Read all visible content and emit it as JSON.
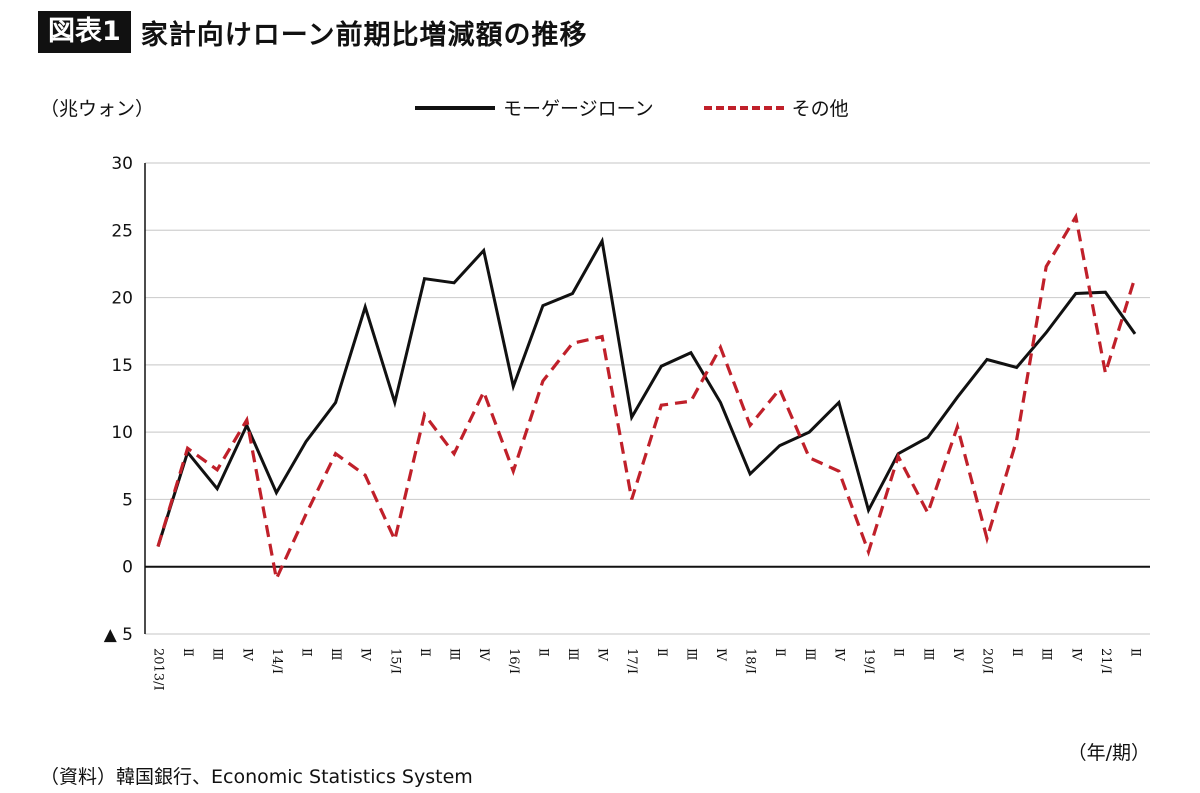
{
  "title": {
    "badge": "図表1",
    "text": "家計向けローン前期比増減額の推移"
  },
  "unit_label": "（兆ウォン）",
  "x_unit_label": "（年/期）",
  "source": "（資料）韓国銀行、Economic Statistics System",
  "colors": {
    "mortgage": "#111111",
    "other": "#c0202a",
    "grid": "#d0d0d0"
  },
  "chart_data": {
    "type": "line",
    "title": "家計向けローン前期比増減額の推移",
    "ylabel": "（兆ウォン）",
    "xlabel": "（年/期）",
    "ylim": [
      -5,
      30
    ],
    "yticks": [
      30,
      25,
      20,
      15,
      10,
      5,
      0,
      -5
    ],
    "ytick_labels": [
      "30",
      "25",
      "20",
      "15",
      "10",
      "5",
      "0",
      "▲ 5"
    ],
    "grid": true,
    "legend_position": "top-center",
    "categories": [
      "2013/Ⅰ",
      "Ⅱ",
      "Ⅲ",
      "Ⅳ",
      "14/Ⅰ",
      "Ⅱ",
      "Ⅲ",
      "Ⅳ",
      "15/Ⅰ",
      "Ⅱ",
      "Ⅲ",
      "Ⅳ",
      "16/Ⅰ",
      "Ⅱ",
      "Ⅲ",
      "Ⅳ",
      "17/Ⅰ",
      "Ⅱ",
      "Ⅲ",
      "Ⅳ",
      "18/Ⅰ",
      "Ⅱ",
      "Ⅲ",
      "Ⅳ",
      "19/Ⅰ",
      "Ⅱ",
      "Ⅲ",
      "Ⅳ",
      "20/Ⅰ",
      "Ⅱ",
      "Ⅲ",
      "Ⅳ",
      "21/Ⅰ",
      "Ⅱ"
    ],
    "series": [
      {
        "name": "モーゲージローン",
        "style": "solid",
        "values": [
          1.5,
          8.5,
          5.8,
          10.5,
          5.5,
          9.3,
          12.2,
          19.3,
          12.2,
          21.4,
          21.1,
          23.5,
          13.4,
          19.4,
          20.3,
          24.2,
          11.1,
          14.9,
          15.9,
          12.2,
          6.9,
          9.0,
          10.0,
          12.2,
          4.2,
          8.4,
          9.6,
          12.6,
          15.4,
          14.8,
          17.4,
          20.3,
          20.4,
          17.3
        ]
      },
      {
        "name": "その他",
        "style": "dashed",
        "values": [
          1.5,
          8.8,
          7.2,
          10.9,
          -0.9,
          3.9,
          8.4,
          6.8,
          2.0,
          11.3,
          8.4,
          13.0,
          7.1,
          13.8,
          16.6,
          17.1,
          5.0,
          12.0,
          12.3,
          16.3,
          10.5,
          13.2,
          8.1,
          7.1,
          1.1,
          8.2,
          4.0,
          10.4,
          2.1,
          9.4,
          22.3,
          26.0,
          14.4,
          21.5
        ]
      }
    ]
  }
}
